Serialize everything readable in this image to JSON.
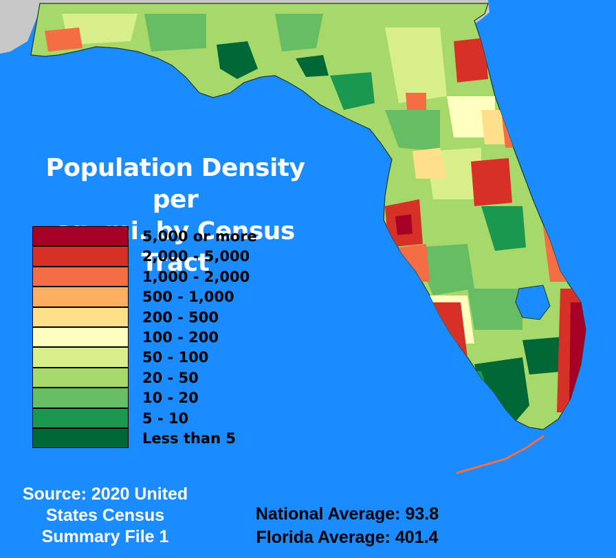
{
  "title": {
    "line1": "Population Density per",
    "line2": "sq. mi. by Census Tract"
  },
  "legend": [
    {
      "label": "5,000 or more",
      "color": "#a50026"
    },
    {
      "label": "2,000 - 5,000",
      "color": "#d73027"
    },
    {
      "label": "1,000 - 2,000",
      "color": "#f46d43"
    },
    {
      "label": "500 - 1,000",
      "color": "#fdae61"
    },
    {
      "label": "200 - 500",
      "color": "#fee08b"
    },
    {
      "label": "100 - 200",
      "color": "#ffffbf"
    },
    {
      "label": "50 - 100",
      "color": "#d9ef8b"
    },
    {
      "label": "20 - 50",
      "color": "#a6d96a"
    },
    {
      "label": "10 - 20",
      "color": "#66bd63"
    },
    {
      "label": "5 - 10",
      "color": "#1a9850"
    },
    {
      "label": "Less than 5",
      "color": "#006837"
    }
  ],
  "source": {
    "line1": "Source: 2020 United",
    "line2": "States Census",
    "line3": "Summary File 1"
  },
  "averages": {
    "national": "National Average: 93.8",
    "florida": "Florida Average: 401.4"
  },
  "colors": {
    "water": "#1a8cff",
    "neighbor_land": "#c8c8c8",
    "county_border": "#1e3a1e"
  }
}
